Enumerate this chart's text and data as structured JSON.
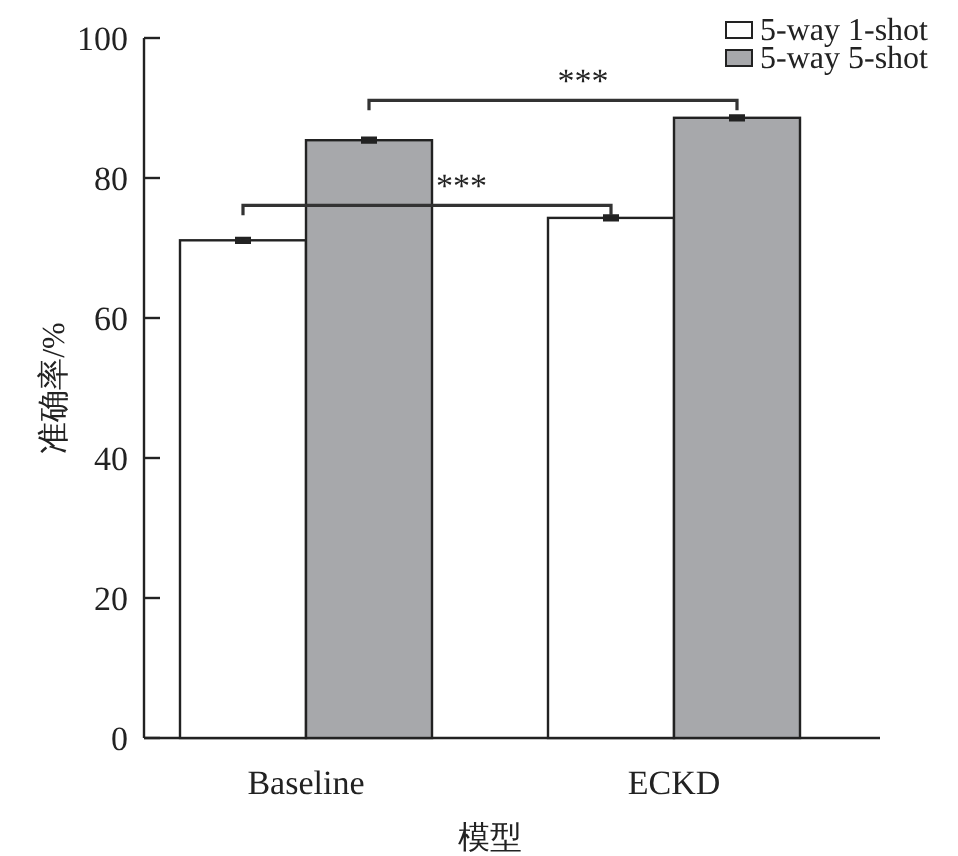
{
  "chart_data": {
    "type": "bar",
    "xlabel": "模型",
    "ylabel": "准确率/%",
    "categories": [
      "Baseline",
      "ECKD"
    ],
    "series": [
      {
        "name": "5-way 1-shot",
        "color": "#ffffff",
        "values": [
          71.1,
          74.3
        ],
        "errors": [
          0.3,
          0.3
        ]
      },
      {
        "name": "5-way 5-shot",
        "color": "#a7a8ab",
        "values": [
          85.4,
          88.6
        ],
        "errors": [
          0.3,
          0.3
        ]
      }
    ],
    "ylim": [
      0,
      100
    ],
    "yticks": [
      0,
      20,
      40,
      60,
      80,
      100
    ],
    "legend": "top right",
    "grid": false,
    "annotations": [
      "***",
      "***"
    ]
  }
}
